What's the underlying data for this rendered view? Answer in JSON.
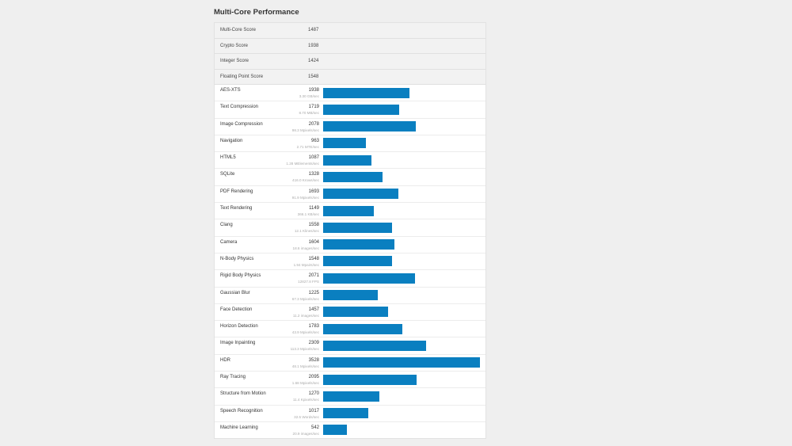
{
  "title": "Multi-Core Performance",
  "accent_color": "#0a7fc0",
  "max_score": 3528,
  "summary": [
    {
      "label": "Multi-Core Score",
      "value": "1487"
    },
    {
      "label": "Crypto Score",
      "value": "1938"
    },
    {
      "label": "Integer Score",
      "value": "1424"
    },
    {
      "label": "Floating Point Score",
      "value": "1548"
    }
  ],
  "benchmarks": [
    {
      "label": "AES-XTS",
      "score": 1938,
      "rate": "3.30 GB/sec"
    },
    {
      "label": "Text Compression",
      "score": 1719,
      "rate": "8.70 MB/sec"
    },
    {
      "label": "Image Compression",
      "score": 2078,
      "rate": "98.3 Mpixels/sec"
    },
    {
      "label": "Navigation",
      "score": 963,
      "rate": "2.71 MTE/sec"
    },
    {
      "label": "HTML5",
      "score": 1087,
      "rate": "1.28 MElements/sec"
    },
    {
      "label": "SQLite",
      "score": 1328,
      "rate": "416.0 Krows/sec"
    },
    {
      "label": "PDF Rendering",
      "score": 1693,
      "rate": "91.9 Mpixels/sec"
    },
    {
      "label": "Text Rendering",
      "score": 1149,
      "rate": "366.1 KB/sec"
    },
    {
      "label": "Clang",
      "score": 1558,
      "rate": "12.1 Klines/sec"
    },
    {
      "label": "Camera",
      "score": 1604,
      "rate": "18.6 images/sec"
    },
    {
      "label": "N-Body Physics",
      "score": 1548,
      "rate": "1.94 Mpairs/sec"
    },
    {
      "label": "Rigid Body Physics",
      "score": 2071,
      "rate": "12827.8 FPS"
    },
    {
      "label": "Gaussian Blur",
      "score": 1225,
      "rate": "67.3 Mpixels/sec"
    },
    {
      "label": "Face Detection",
      "score": 1457,
      "rate": "11.2 images/sec"
    },
    {
      "label": "Horizon Detection",
      "score": 1783,
      "rate": "43.9 Mpixels/sec"
    },
    {
      "label": "Image Inpainting",
      "score": 2309,
      "rate": "113.3 Mpixels/sec"
    },
    {
      "label": "HDR",
      "score": 3528,
      "rate": "48.1 Mpixels/sec"
    },
    {
      "label": "Ray Tracing",
      "score": 2095,
      "rate": "1.68 Mpixels/sec"
    },
    {
      "label": "Structure from Motion",
      "score": 1270,
      "rate": "11.4 Kpixels/sec"
    },
    {
      "label": "Speech Recognition",
      "score": 1017,
      "rate": "32.5 Words/sec"
    },
    {
      "label": "Machine Learning",
      "score": 542,
      "rate": "20.9 images/sec"
    }
  ]
}
